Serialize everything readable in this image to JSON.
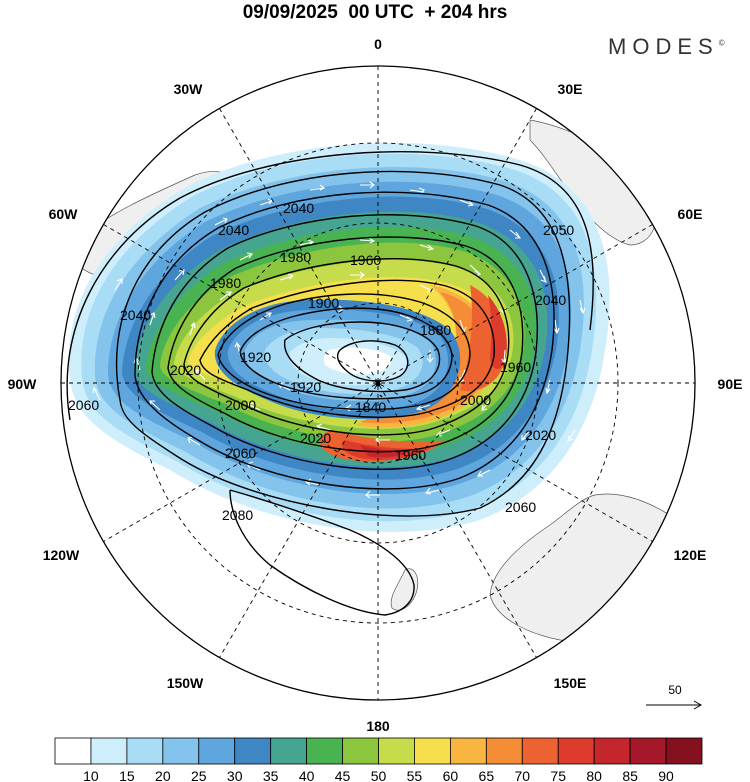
{
  "title": "09/09/2025  00 UTC  + 204 hrs",
  "brand": "MODES",
  "brand_mark": "©",
  "longitude_labels": [
    "0",
    "30E",
    "60E",
    "90E",
    "120E",
    "150E",
    "180",
    "150W",
    "120W",
    "90W",
    "60W",
    "30W"
  ],
  "contour_labels": [
    "1840",
    "1880",
    "1900",
    "1920",
    "1920",
    "1960",
    "1960",
    "1960",
    "1980",
    "1980",
    "2000",
    "2000",
    "2020",
    "2020",
    "2040",
    "2040",
    "2040",
    "2040",
    "2050",
    "2060",
    "2060",
    "2060",
    "2080",
    "2020"
  ],
  "vector_reference": {
    "label": "50"
  },
  "colorbar": {
    "ticks": [
      "10",
      "15",
      "20",
      "25",
      "30",
      "35",
      "40",
      "45",
      "50",
      "55",
      "60",
      "65",
      "70",
      "75",
      "80",
      "85",
      "90"
    ],
    "colors": [
      "#ffffff",
      "#cfeefb",
      "#a9dcf5",
      "#84c4ec",
      "#5ea6dd",
      "#3f86c5",
      "#46a591",
      "#4ab351",
      "#8cc63f",
      "#c7dc4a",
      "#f5df4d",
      "#f8b640",
      "#f48d36",
      "#ec6331",
      "#dd3b2c",
      "#c4262b",
      "#a5182a",
      "#85111f"
    ]
  }
}
